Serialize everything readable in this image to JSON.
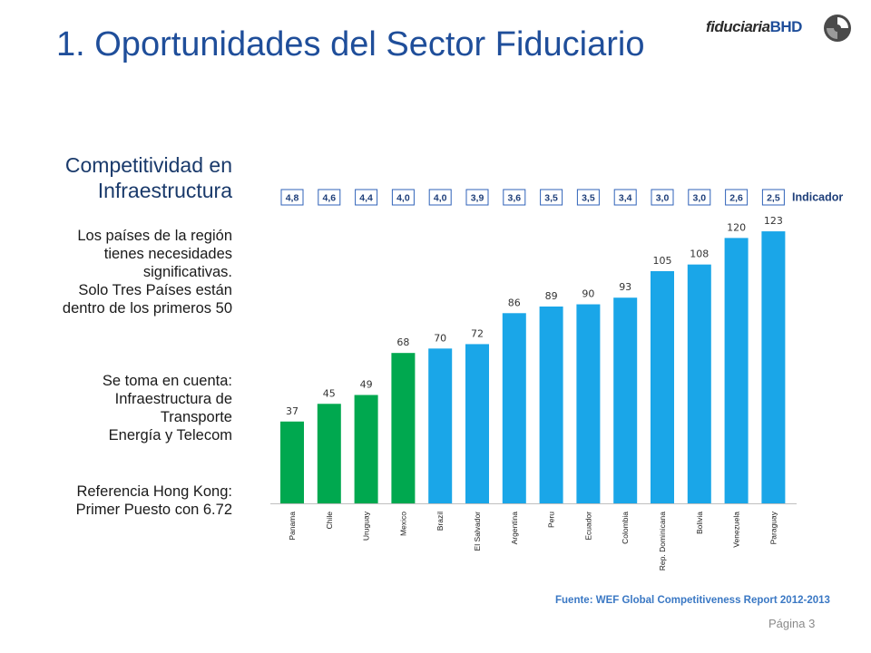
{
  "slide": {
    "title": "1. Oportunidades del Sector Fiduciario",
    "logo_text": "fiduciaria",
    "logo_text_bold": "BHD",
    "heading_lines": [
      "Competitividad en",
      "Infraestructura"
    ],
    "paragraph1_lines": [
      "Los países de la región",
      "tienes necesidades",
      "significativas.",
      "Solo  Tres Países están",
      "dentro de los primeros 50"
    ],
    "paragraph2_lines": [
      "Se toma en cuenta:",
      "Infraestructura de",
      "Transporte",
      "Energía y Telecom"
    ],
    "paragraph3_lines": [
      "Referencia Hong Kong:",
      "Primer Puesto con  6.72"
    ],
    "source": "Fuente: WEF Global Competitiveness Report 2012-2013",
    "page_label": "Página 3"
  },
  "colors": {
    "title": "#1f4e9a",
    "green": "#00a84f",
    "blue": "#1aa6e8",
    "indicator_border": "#2f62b8"
  },
  "chart_data": {
    "type": "bar",
    "categories": [
      "Panama",
      "Chile",
      "Uruguay",
      "Mexico",
      "Brazil",
      "El Salvador",
      "Argentina",
      "Peru",
      "Ecuador",
      "Colombia",
      "Rep. Dominicana",
      "Bolivia",
      "Venezuela",
      "Paraguay"
    ],
    "values": [
      37,
      45,
      49,
      68,
      70,
      72,
      86,
      89,
      90,
      93,
      105,
      108,
      120,
      123
    ],
    "indicator_label": "Indicador",
    "indicators": [
      "4,8",
      "4,6",
      "4,4",
      "4,0",
      "4,0",
      "3,9",
      "3,6",
      "3,5",
      "3,5",
      "3,4",
      "3,0",
      "3,0",
      "2,6",
      "2,5"
    ],
    "bar_colors": [
      "green",
      "green",
      "green",
      "green",
      "blue",
      "blue",
      "blue",
      "blue",
      "blue",
      "blue",
      "blue",
      "blue",
      "blue",
      "blue"
    ],
    "ylim": [
      0,
      130
    ],
    "grid": false,
    "legend": "none"
  }
}
